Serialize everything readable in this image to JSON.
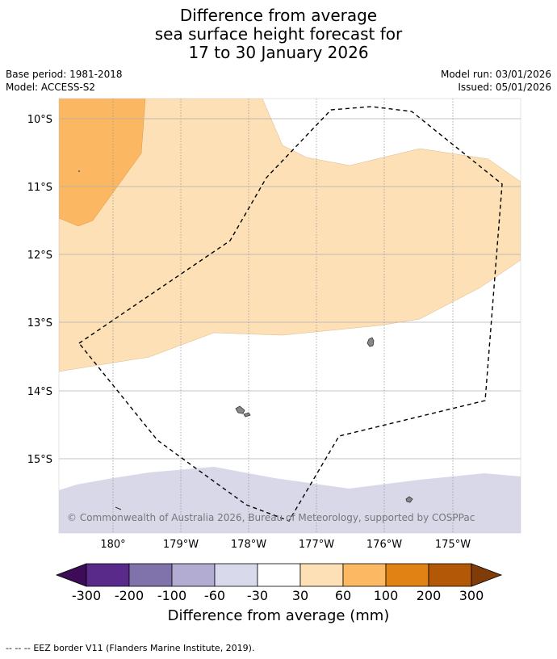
{
  "title": {
    "line1": "Difference from average",
    "line2": "sea surface height forecast for",
    "line3": "17 to 30 January 2026"
  },
  "meta": {
    "base_period": "Base period: 1981-2018",
    "model": "Model: ACCESS-S2",
    "model_run": "Model run: 03/01/2026",
    "issued": "Issued: 05/01/2026"
  },
  "map": {
    "lat_labels": [
      "10°S",
      "11°S",
      "12°S",
      "13°S",
      "14°S",
      "15°S"
    ],
    "lon_labels": [
      "180°",
      "179°W",
      "178°W",
      "177°W",
      "176°W",
      "175°W"
    ],
    "copyright": "© Commonwealth of Australia 2026, Bureau of Meteorology, supported by COSPPac",
    "colors": {
      "orange_light": "#fde0b6",
      "orange_mid": "#fbb762",
      "purple_pale": "#d8d8e9",
      "land": "#888888",
      "grid": "#b0b0b0"
    }
  },
  "colorbar": {
    "title": "Difference from average (mm)",
    "labels": [
      "-300",
      "-200",
      "-100",
      "-60",
      "-30",
      "30",
      "60",
      "100",
      "200",
      "300"
    ],
    "colors": [
      "#3d0b57",
      "#5a2a8a",
      "#8073ac",
      "#b2abd2",
      "#d8daeb",
      "#ffffff",
      "#fee0b6",
      "#fdb863",
      "#e08214",
      "#b35806",
      "#7f3b08"
    ]
  },
  "footer": {
    "legend_symbol": "-- -- --",
    "legend_text": "EEZ border V11 (Flanders Marine Institute, 2019)."
  }
}
